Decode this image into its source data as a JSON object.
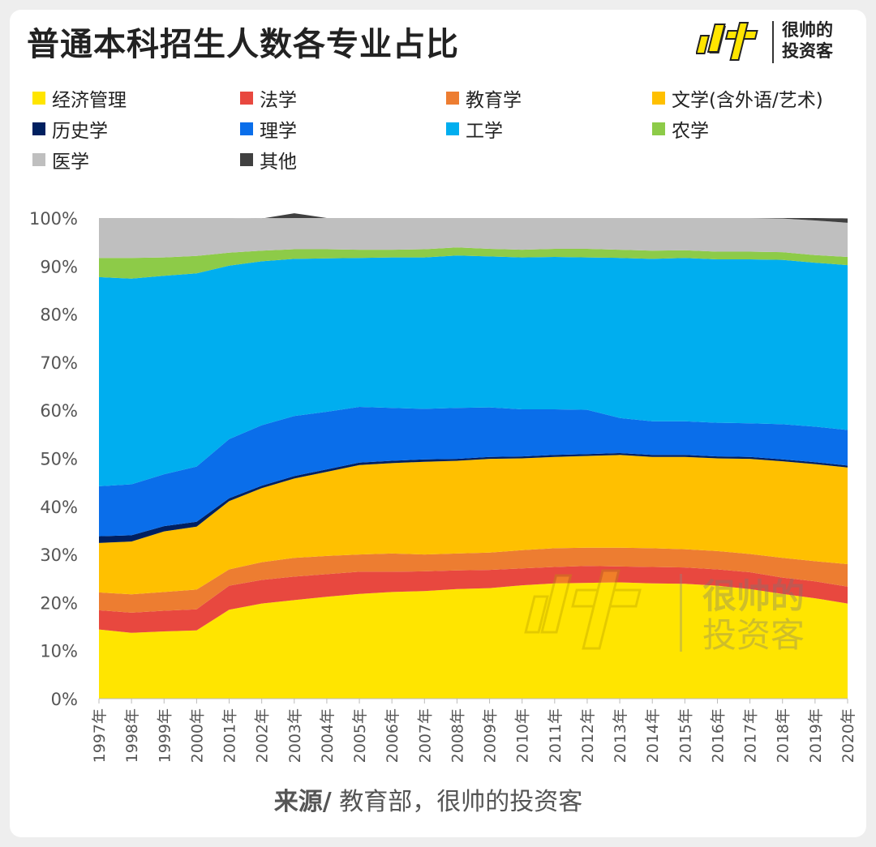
{
  "title": "普通本科招生人数各专业占比",
  "logo": {
    "mark": "帅",
    "brand_line1": "很帅的",
    "brand_line2": "投资客"
  },
  "watermark": {
    "line1": "很帅的",
    "line2": "投资客"
  },
  "source": {
    "prefix": "来源/",
    "text": " 教育部，很帅的投资客"
  },
  "chart_data": {
    "type": "area",
    "stacked": true,
    "percent": true,
    "title": "普通本科招生人数各专业占比",
    "xlabel": "",
    "ylabel": "",
    "ylim": [
      0,
      100
    ],
    "yticks": [
      "0%",
      "10%",
      "20%",
      "30%",
      "40%",
      "50%",
      "60%",
      "70%",
      "80%",
      "90%",
      "100%"
    ],
    "legend_position": "top",
    "grid": false,
    "categories": [
      "1997年",
      "1998年",
      "1999年",
      "2000年",
      "2001年",
      "2002年",
      "2003年",
      "2004年",
      "2005年",
      "2006年",
      "2007年",
      "2008年",
      "2009年",
      "2010年",
      "2011年",
      "2012年",
      "2013年",
      "2014年",
      "2015年",
      "2016年",
      "2017年",
      "2018年",
      "2019年",
      "2020年"
    ],
    "series": [
      {
        "name": "经济管理",
        "color": "#FFE500",
        "values": [
          14.4,
          13.7,
          14.0,
          14.2,
          18.5,
          19.8,
          20.5,
          21.2,
          21.8,
          22.2,
          22.4,
          22.8,
          23.0,
          23.6,
          24.0,
          24.1,
          24.2,
          24.0,
          23.9,
          23.5,
          22.8,
          21.8,
          20.9,
          19.8
        ]
      },
      {
        "name": "法学",
        "color": "#E8483F",
        "values": [
          4.0,
          4.2,
          4.3,
          4.4,
          5.0,
          4.9,
          4.9,
          4.7,
          4.6,
          4.2,
          4.1,
          3.9,
          3.8,
          3.5,
          3.4,
          3.5,
          3.3,
          3.4,
          3.4,
          3.4,
          3.5,
          3.4,
          3.5,
          3.5
        ]
      },
      {
        "name": "教育学",
        "color": "#ED7D31",
        "values": [
          3.7,
          3.8,
          3.9,
          4.1,
          3.4,
          3.7,
          3.9,
          3.8,
          3.6,
          3.8,
          3.5,
          3.5,
          3.6,
          3.8,
          3.9,
          3.8,
          3.9,
          3.9,
          3.8,
          3.8,
          3.8,
          4.1,
          4.2,
          4.7
        ]
      },
      {
        "name": "文学(含外语/艺术)",
        "color": "#FFC000",
        "values": [
          10.3,
          11.0,
          12.6,
          13.1,
          14.2,
          15.4,
          16.5,
          17.5,
          18.6,
          18.8,
          19.3,
          19.3,
          19.5,
          19.1,
          19.0,
          19.1,
          19.3,
          19.0,
          19.2,
          19.3,
          19.8,
          20.1,
          20.2,
          20.1
        ]
      },
      {
        "name": "历史学",
        "color": "#002060",
        "values": [
          1.4,
          1.3,
          1.1,
          1.0,
          0.6,
          0.5,
          0.5,
          0.5,
          0.5,
          0.5,
          0.5,
          0.4,
          0.4,
          0.4,
          0.4,
          0.4,
          0.4,
          0.4,
          0.4,
          0.4,
          0.4,
          0.4,
          0.4,
          0.4
        ]
      },
      {
        "name": "理学",
        "color": "#0A6EEA",
        "values": [
          10.4,
          10.6,
          10.8,
          11.5,
          12.3,
          12.6,
          12.5,
          12.0,
          11.6,
          11.0,
          10.5,
          10.6,
          10.3,
          9.8,
          9.5,
          9.2,
          7.3,
          7.0,
          7.0,
          7.0,
          7.0,
          7.3,
          7.4,
          7.4
        ]
      },
      {
        "name": "工学",
        "color": "#00AEEF",
        "values": [
          43.5,
          42.8,
          41.3,
          40.2,
          36.1,
          34.1,
          32.7,
          31.9,
          31.0,
          31.3,
          31.5,
          31.7,
          31.4,
          31.6,
          31.7,
          31.7,
          33.3,
          33.8,
          34.0,
          34.0,
          34.1,
          34.2,
          34.1,
          34.3
        ]
      },
      {
        "name": "农学",
        "color": "#8DCB48",
        "values": [
          4.0,
          4.3,
          3.8,
          3.6,
          2.7,
          2.2,
          2.0,
          1.9,
          1.7,
          1.6,
          1.7,
          1.7,
          1.6,
          1.6,
          1.7,
          1.8,
          1.7,
          1.7,
          1.6,
          1.6,
          1.6,
          1.6,
          1.6,
          1.7
        ]
      },
      {
        "name": "医学",
        "color": "#BFBFBF",
        "values": [
          8.3,
          8.3,
          8.2,
          7.9,
          7.2,
          6.7,
          7.5,
          6.5,
          6.6,
          6.6,
          6.5,
          6.1,
          6.4,
          6.6,
          6.4,
          6.4,
          6.6,
          6.8,
          6.7,
          7.0,
          7.0,
          7.0,
          7.2,
          7.1
        ]
      },
      {
        "name": "其他",
        "color": "#404040",
        "values": [
          0,
          0,
          0,
          0,
          0,
          0,
          0,
          0,
          0,
          0,
          0,
          0,
          0,
          0,
          0,
          0,
          0,
          0,
          0,
          0,
          0,
          0.1,
          0.5,
          0.9
        ]
      }
    ]
  }
}
